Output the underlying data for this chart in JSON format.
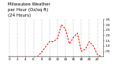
{
  "title": "Milwaukee Weather  per Hour (Oz/sq ft)  (24 Hours)",
  "title_line1": "Milwaukee Weather",
  "title_line2": "per Hour (Oz/sq ft)",
  "title_line3": "(24 Hours)",
  "hours": [
    0,
    1,
    2,
    3,
    4,
    5,
    6,
    7,
    8,
    9,
    10,
    11,
    12,
    13,
    14,
    15,
    16,
    17,
    18,
    19,
    20,
    21,
    22,
    23
  ],
  "values": [
    0,
    0,
    0,
    0,
    0,
    0,
    0,
    0,
    0.04,
    0.09,
    0.14,
    0.14,
    0.17,
    0.3,
    0.26,
    0.12,
    0.18,
    0.22,
    0.05,
    0.07,
    0.14,
    0.1,
    0.02,
    0
  ],
  "line_color": "#ff0000",
  "bg_color": "#ffffff",
  "grid_color": "#888888",
  "ylim": [
    0,
    0.35
  ],
  "ytick_values": [
    0.05,
    0.1,
    0.15,
    0.2,
    0.25,
    0.3,
    0.35
  ],
  "ytick_labels": [
    ".05",
    ".10",
    ".15",
    ".20",
    ".25",
    ".30",
    ".35"
  ],
  "xtick_hours": [
    0,
    2,
    4,
    6,
    8,
    10,
    12,
    14,
    16,
    18,
    20,
    22
  ],
  "title_fontsize": 4.0,
  "tick_fontsize": 3.0
}
